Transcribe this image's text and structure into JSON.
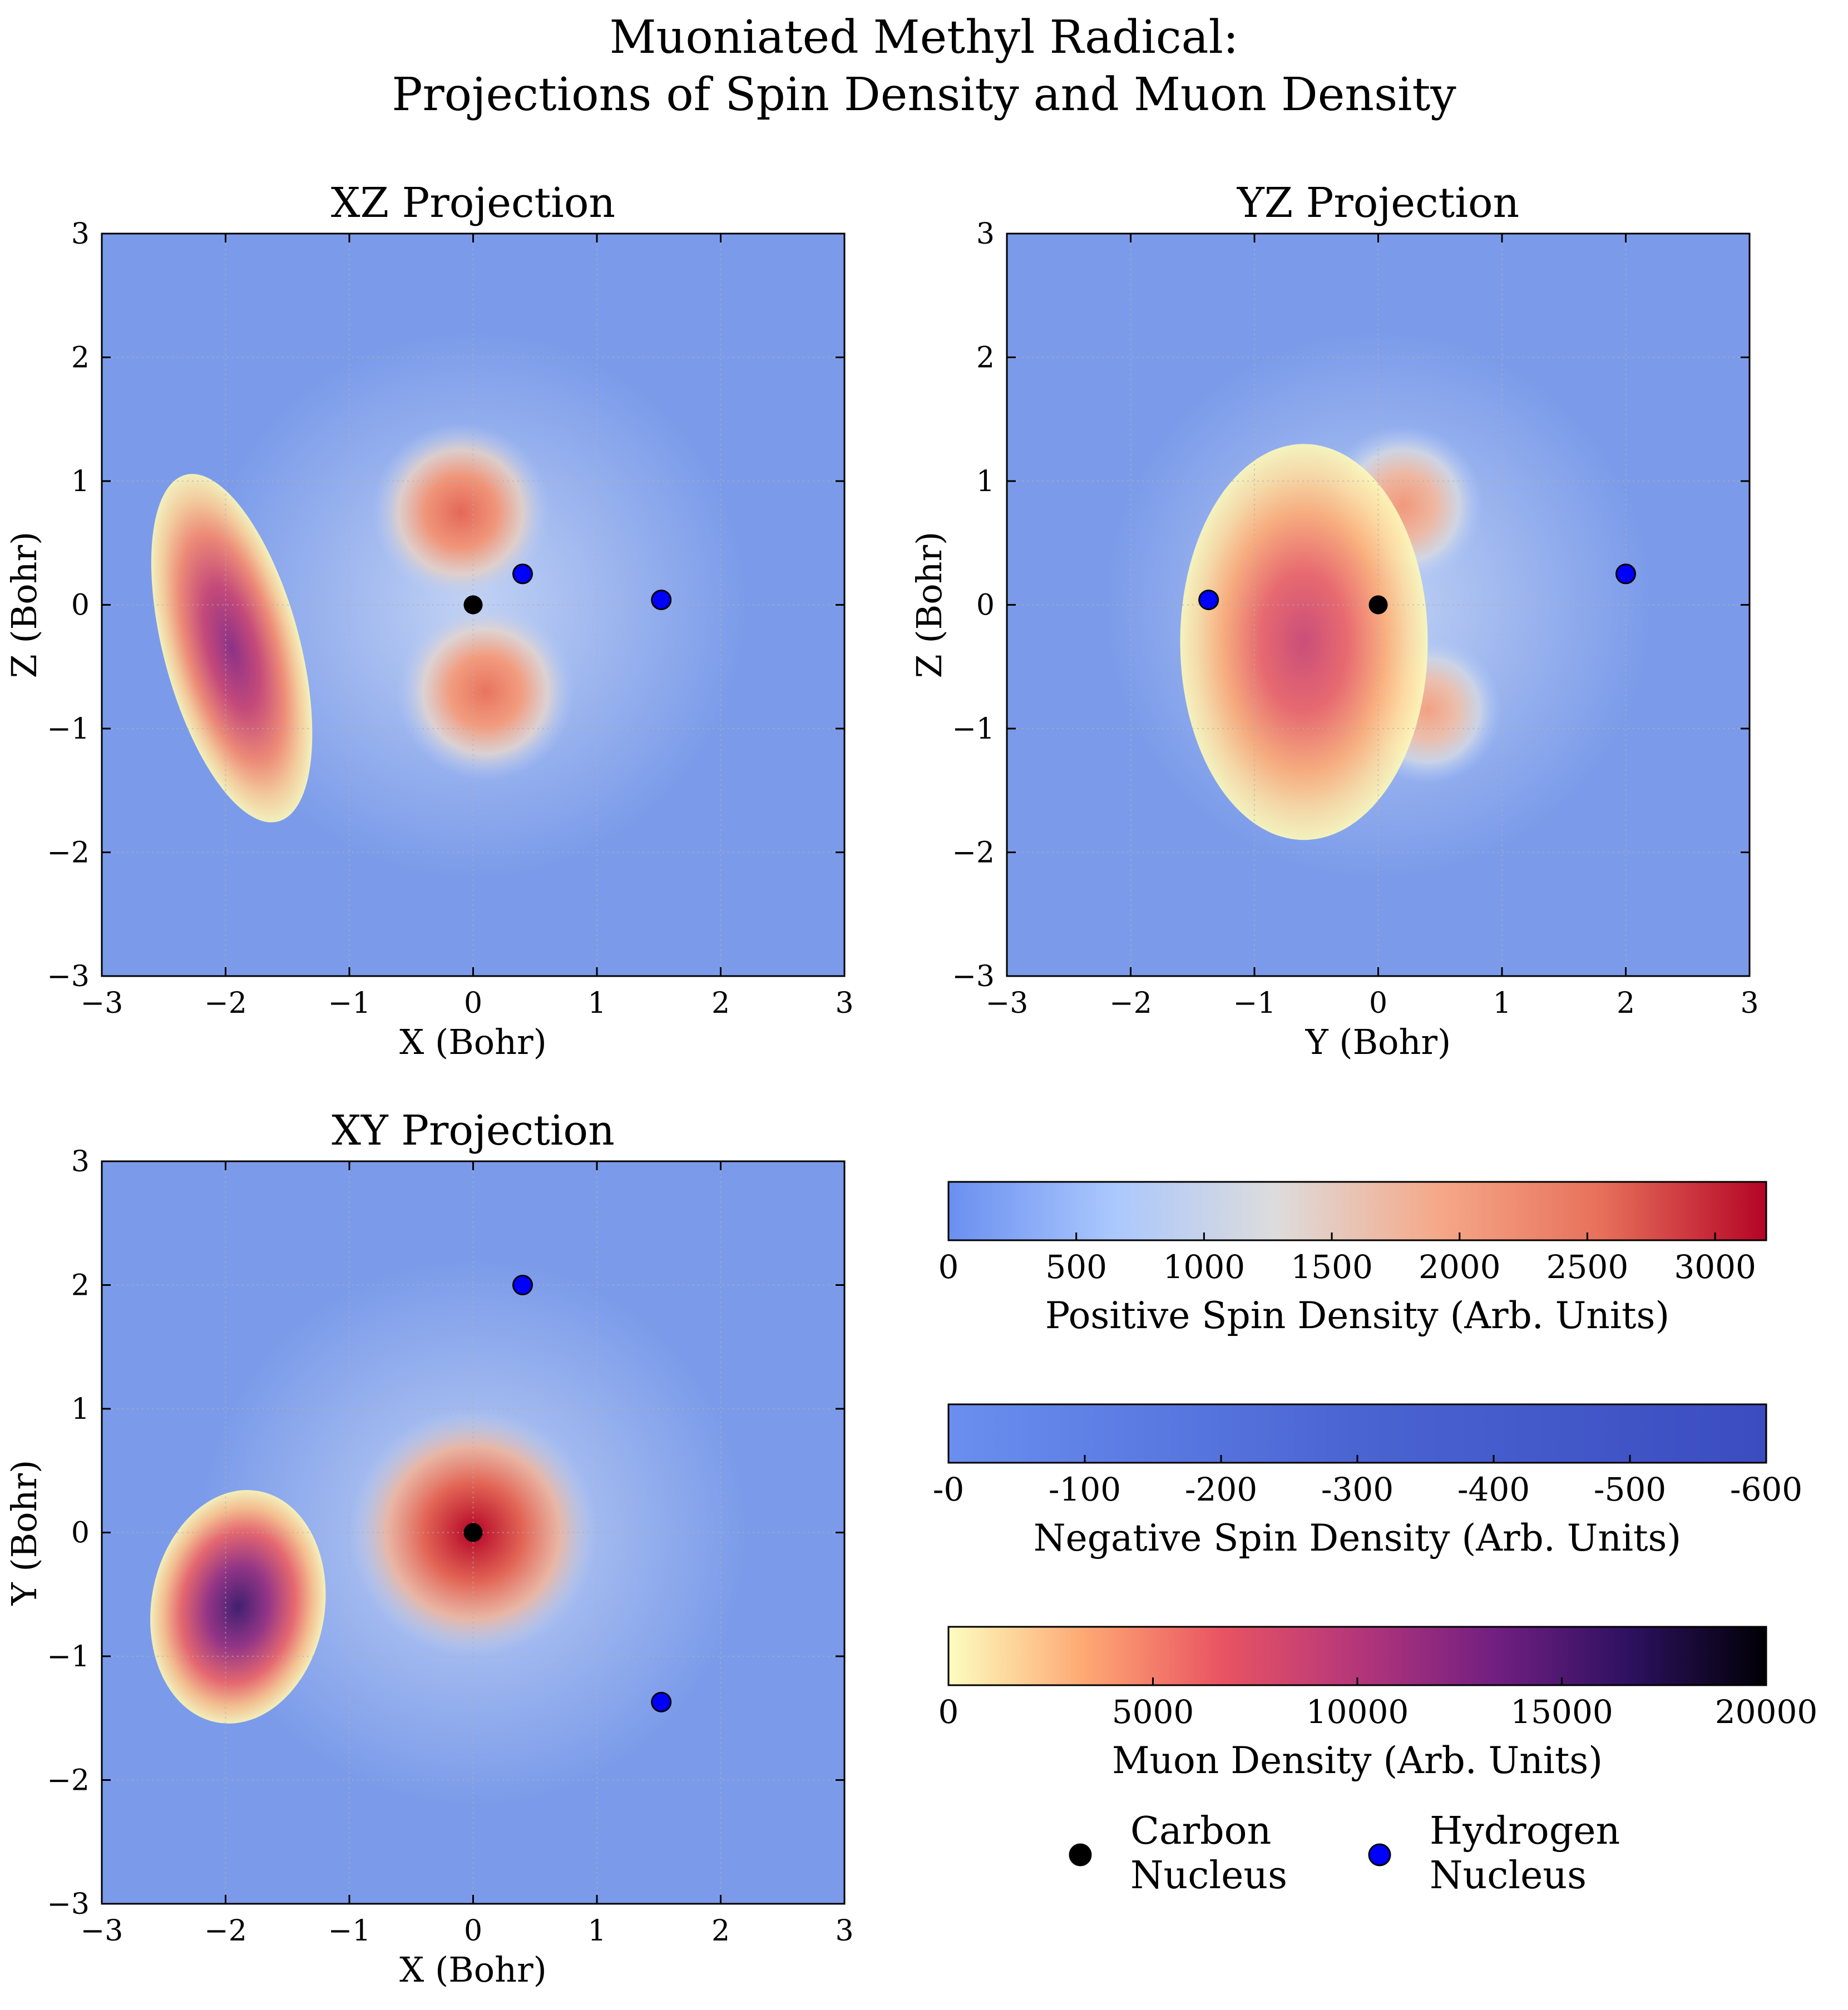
{
  "chart_data": {
    "type": "heatmap",
    "title": "Muoniated Methyl Radical:\nProjections of Spin Density and Muon Density",
    "panels": [
      {
        "title": "XZ Projection",
        "xlabel": "X (Bohr)",
        "ylabel": "Z (Bohr)",
        "xlim": [
          -3,
          3
        ],
        "ylim": [
          -3,
          3
        ],
        "xticks": [
          "−3",
          "−2",
          "−1",
          "0",
          "1",
          "2",
          "3"
        ],
        "yticks": [
          "−3",
          "−2",
          "−1",
          "0",
          "1",
          "2",
          "3"
        ],
        "grid": true,
        "spin_lobes": [
          {
            "cx": -0.1,
            "cy": 0.75,
            "r": 0.72,
            "peak": 2600
          },
          {
            "cx": 0.1,
            "cy": -0.7,
            "r": 0.72,
            "peak": 2500
          }
        ],
        "muon_region": {
          "cx": -1.95,
          "cy": -0.35,
          "rx": 0.55,
          "ry": 1.45,
          "rotation_deg": -15,
          "peak": 12000
        },
        "carbon": [
          [
            0,
            0
          ]
        ],
        "hydrogen": [
          [
            0.4,
            0.25
          ],
          [
            1.52,
            0.04
          ]
        ]
      },
      {
        "title": "YZ Projection",
        "xlabel": "Y (Bohr)",
        "ylabel": "Z (Bohr)",
        "xlim": [
          -3,
          3
        ],
        "ylim": [
          -3,
          3
        ],
        "xticks": [
          "−3",
          "−2",
          "−1",
          "0",
          "1",
          "2",
          "3"
        ],
        "yticks": [
          "−3",
          "−2",
          "−1",
          "0",
          "1",
          "2",
          "3"
        ],
        "grid": true,
        "spin_lobes": [
          {
            "cx": 0.2,
            "cy": 0.8,
            "r": 0.65,
            "peak": 2100
          },
          {
            "cx": 0.4,
            "cy": -0.85,
            "r": 0.6,
            "peak": 2000
          }
        ],
        "muon_region": {
          "cx": -0.6,
          "cy": -0.3,
          "rx": 1.0,
          "ry": 1.6,
          "rotation_deg": 0,
          "peak": 8500
        },
        "carbon": [
          [
            0,
            0
          ]
        ],
        "hydrogen": [
          [
            -1.37,
            0.04
          ],
          [
            2.0,
            0.25
          ]
        ]
      },
      {
        "title": "XY Projection",
        "xlabel": "X (Bohr)",
        "ylabel": "Y (Bohr)",
        "xlim": [
          -3,
          3
        ],
        "ylim": [
          -3,
          3
        ],
        "xticks": [
          "−3",
          "−2",
          "−1",
          "0",
          "1",
          "2",
          "3"
        ],
        "yticks": [
          "−3",
          "−2",
          "−1",
          "0",
          "1",
          "2",
          "3"
        ],
        "grid": true,
        "spin_lobes": [
          {
            "cx": 0,
            "cy": 0,
            "r": 1.0,
            "peak": 3200
          }
        ],
        "muon_region": {
          "cx": -1.9,
          "cy": -0.6,
          "rx": 0.7,
          "ry": 0.95,
          "rotation_deg": 10,
          "peak": 16000
        },
        "carbon": [
          [
            0,
            0
          ]
        ],
        "hydrogen": [
          [
            0.4,
            2.0
          ],
          [
            1.52,
            -1.37
          ]
        ]
      }
    ],
    "colorbars": [
      {
        "label": "Positive Spin Density (Arb. Units)",
        "ticks": [
          "0",
          "500",
          "1000",
          "1500",
          "2000",
          "2500",
          "3000"
        ],
        "tick_values": [
          0,
          500,
          1000,
          1500,
          2000,
          2500,
          3000
        ],
        "range": [
          0,
          3200
        ],
        "colormap": "coolwarm (upper half)",
        "stops": [
          "#6a8ff0",
          "#aac7fd",
          "#dddcdc",
          "#f5a888",
          "#e76f5a",
          "#b40426"
        ]
      },
      {
        "label": "Negative Spin Density (Arb. Units)",
        "ticks": [
          "-0",
          "-100",
          "-200",
          "-300",
          "-400",
          "-500",
          "-600"
        ],
        "tick_values": [
          0,
          -100,
          -200,
          -300,
          -400,
          -500,
          -600
        ],
        "range": [
          0,
          -600
        ],
        "colormap": "blues",
        "stops": [
          "#6a8ff0",
          "#4a64d2",
          "#3b4cc0"
        ]
      },
      {
        "label": "Muon Density (Arb. Units)",
        "ticks": [
          "0",
          "5000",
          "10000",
          "15000",
          "20000"
        ],
        "tick_values": [
          0,
          5000,
          10000,
          15000,
          20000
        ],
        "range": [
          0,
          20000
        ],
        "colormap": "magma_r",
        "stops": [
          "#fcfdbf",
          "#fea873",
          "#e95462",
          "#b5367a",
          "#721f81",
          "#2d1160",
          "#000004"
        ]
      }
    ],
    "legend": [
      {
        "label": "Carbon\nNucleus",
        "color": "#000000"
      },
      {
        "label": "Hydrogen\nNucleus",
        "color": "#0000ff"
      }
    ],
    "background_color": "#7b9bea"
  }
}
